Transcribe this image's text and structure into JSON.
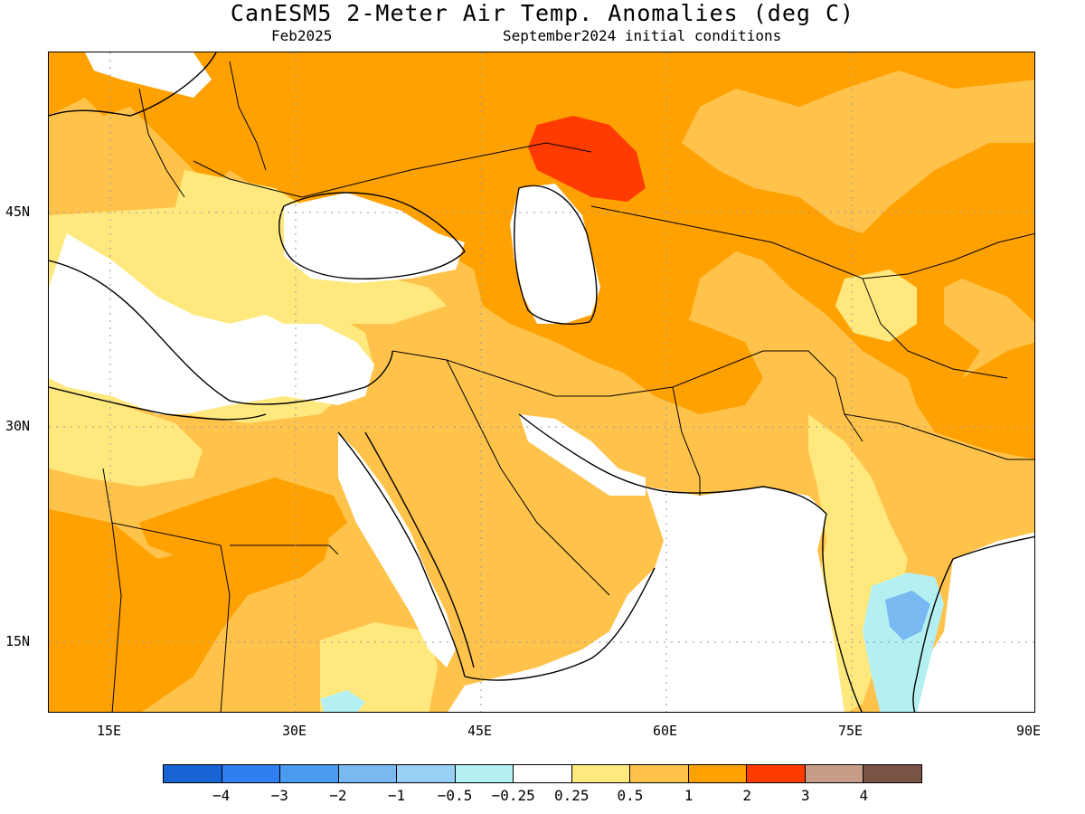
{
  "title": "CanESM5 2-Meter Air Temp. Anomalies (deg C)",
  "valid_month": "Feb2025",
  "init_conditions": "September2024 initial conditions",
  "map": {
    "lat_labels": [
      "45N",
      "30N",
      "15N"
    ],
    "lon_labels": [
      "15E",
      "30E",
      "45E",
      "60E",
      "75E",
      "90E"
    ],
    "lon_range": [
      10,
      90
    ],
    "lat_range": [
      10,
      55
    ]
  },
  "colorbar": {
    "colors": [
      "#1764d4",
      "#2f7ff0",
      "#4a9aef",
      "#78b9f2",
      "#98cff4",
      "#b4f0f2",
      "#ffffff",
      "#ffe97f",
      "#ffc34b",
      "#ffa101",
      "#ff3b00",
      "#c79d8a",
      "#7b5346"
    ],
    "labels": [
      "−4",
      "−3",
      "−2",
      "−1",
      "−0.5",
      "−0.25",
      "0.25",
      "0.5",
      "1",
      "2",
      "3",
      "4"
    ]
  }
}
